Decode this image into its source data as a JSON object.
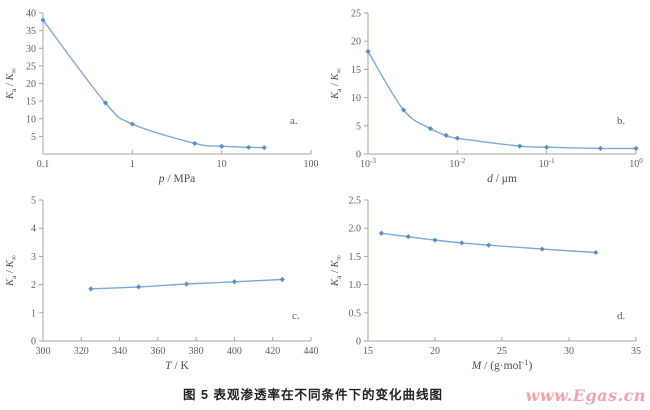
{
  "figure": {
    "caption": "图 5  表观渗透率在不同条件下的变化曲线图",
    "watermark": "www.Egas.cn",
    "colors": {
      "line": "#7ea9d8",
      "marker": "#5b90c6",
      "axis": "#a3a896",
      "tick_label": "#5d6156",
      "axis_label": "#4a4e44",
      "caption": "#222222",
      "watermark": "#f2a3ad",
      "background": "#ffffff"
    }
  },
  "chart_data": [
    {
      "id": "a",
      "type": "line",
      "tag": "a.",
      "tag_pos": [
        290,
        124
      ],
      "title": "",
      "xlabel": "p / MPa",
      "ylabel": "Ka / K∞",
      "xlabel_tokens": [
        {
          "t": "p",
          "i": 1
        },
        {
          "t": " / MPa"
        }
      ],
      "ylabel_tokens": [
        {
          "t": "K",
          "i": 1
        },
        {
          "t": "a",
          "sub": 1
        },
        {
          "t": " / "
        },
        {
          "t": "K",
          "i": 1
        },
        {
          "t": "∞",
          "sub": 1
        }
      ],
      "x_scale": "log",
      "x_min": 0.1,
      "x_max": 100,
      "y_min": 0,
      "y_max": 40,
      "grid": false,
      "legend": "none",
      "x": [
        0.1,
        0.5,
        1,
        5,
        10,
        20,
        30
      ],
      "y": [
        38,
        14.5,
        8.5,
        3,
        2.2,
        1.9,
        1.8
      ],
      "x_ticks": [
        {
          "v": 0.1,
          "l": "0.1"
        },
        {
          "v": 1,
          "l": "1"
        },
        {
          "v": 10,
          "l": "10"
        },
        {
          "v": 100,
          "l": "100"
        }
      ],
      "y_ticks": [
        {
          "v": 5,
          "l": "5"
        },
        {
          "v": 10,
          "l": "10"
        },
        {
          "v": 15,
          "l": "15"
        },
        {
          "v": 20,
          "l": "20"
        },
        {
          "v": 25,
          "l": "25"
        },
        {
          "v": 30,
          "l": "30"
        },
        {
          "v": 35,
          "l": "35"
        },
        {
          "v": 40,
          "l": "40"
        }
      ]
    },
    {
      "id": "b",
      "type": "line",
      "tag": "b.",
      "tag_pos": [
        292,
        124
      ],
      "title": "",
      "xlabel": "d / μm",
      "ylabel": "Ka / K∞",
      "xlabel_tokens": [
        {
          "t": "d",
          "i": 1
        },
        {
          "t": " / μm"
        }
      ],
      "ylabel_tokens": [
        {
          "t": "K",
          "i": 1
        },
        {
          "t": "a",
          "sub": 1
        },
        {
          "t": " / "
        },
        {
          "t": "K",
          "i": 1
        },
        {
          "t": "∞",
          "sub": 1
        }
      ],
      "x_scale": "log",
      "x_min": 0.001,
      "x_max": 1,
      "y_min": 0,
      "y_max": 25,
      "grid": false,
      "legend": "none",
      "x": [
        0.001,
        0.0025,
        0.005,
        0.0075,
        0.01,
        0.05,
        0.1,
        0.4,
        1
      ],
      "y": [
        18.2,
        7.8,
        4.5,
        3.3,
        2.8,
        1.4,
        1.2,
        1.0,
        1.0
      ],
      "x_ticks": [
        {
          "v": 0.001,
          "e": "-3"
        },
        {
          "v": 0.01,
          "e": "-2"
        },
        {
          "v": 0.1,
          "e": "-1"
        },
        {
          "v": 1,
          "e": "0"
        }
      ],
      "y_ticks": [
        {
          "v": 0,
          "l": "0"
        },
        {
          "v": 5,
          "l": "5"
        },
        {
          "v": 10,
          "l": "10"
        },
        {
          "v": 15,
          "l": "15"
        },
        {
          "v": 20,
          "l": "20"
        },
        {
          "v": 25,
          "l": "25"
        }
      ]
    },
    {
      "id": "c",
      "type": "line",
      "tag": "c.",
      "tag_pos": [
        292,
        132
      ],
      "title": "",
      "xlabel": "T / K",
      "ylabel": "Ka / K∞",
      "xlabel_tokens": [
        {
          "t": "T",
          "i": 1
        },
        {
          "t": " / K"
        }
      ],
      "ylabel_tokens": [
        {
          "t": "K",
          "i": 1
        },
        {
          "t": "a",
          "sub": 1
        },
        {
          "t": " / "
        },
        {
          "t": "K",
          "i": 1
        },
        {
          "t": "∞",
          "sub": 1
        }
      ],
      "x_scale": "linear",
      "x_min": 300,
      "x_max": 440,
      "y_min": 0,
      "y_max": 5,
      "grid": false,
      "legend": "none",
      "x": [
        325,
        350,
        375,
        400,
        425
      ],
      "y": [
        1.85,
        1.92,
        2.02,
        2.1,
        2.18
      ],
      "x_ticks": [
        {
          "v": 300,
          "l": "300"
        },
        {
          "v": 320,
          "l": "320"
        },
        {
          "v": 340,
          "l": "340"
        },
        {
          "v": 360,
          "l": "360"
        },
        {
          "v": 380,
          "l": "380"
        },
        {
          "v": 400,
          "l": "400"
        },
        {
          "v": 420,
          "l": "420"
        },
        {
          "v": 440,
          "l": "440"
        }
      ],
      "y_ticks": [
        {
          "v": 0,
          "l": "0"
        },
        {
          "v": 1,
          "l": "1"
        },
        {
          "v": 2,
          "l": "2"
        },
        {
          "v": 3,
          "l": "3"
        },
        {
          "v": 4,
          "l": "4"
        },
        {
          "v": 5,
          "l": "5"
        }
      ]
    },
    {
      "id": "d",
      "type": "line",
      "tag": "d.",
      "tag_pos": [
        292,
        132
      ],
      "title": "",
      "xlabel": "M / (g·mol-1)",
      "ylabel": "Ka / K∞",
      "xlabel_tokens": [
        {
          "t": "M",
          "i": 1
        },
        {
          "t": " / (g·mol"
        },
        {
          "t": "-1",
          "sup": 1
        },
        {
          "t": ")"
        }
      ],
      "ylabel_tokens": [
        {
          "t": "K",
          "i": 1
        },
        {
          "t": "a",
          "sub": 1
        },
        {
          "t": " / "
        },
        {
          "t": "K",
          "i": 1
        },
        {
          "t": "∞",
          "sub": 1
        }
      ],
      "x_scale": "linear",
      "x_min": 15,
      "x_max": 35,
      "y_min": 0,
      "y_max": 2.5,
      "grid": false,
      "legend": "none",
      "x": [
        16,
        18,
        20,
        22,
        24,
        28,
        32
      ],
      "y": [
        1.91,
        1.85,
        1.79,
        1.74,
        1.7,
        1.63,
        1.57
      ],
      "x_ticks": [
        {
          "v": 15,
          "l": "15"
        },
        {
          "v": 20,
          "l": "20"
        },
        {
          "v": 25,
          "l": "25"
        },
        {
          "v": 30,
          "l": "30"
        },
        {
          "v": 35,
          "l": "35"
        }
      ],
      "y_ticks": [
        {
          "v": 0,
          "l": "0"
        },
        {
          "v": 0.5,
          "l": "0.5"
        },
        {
          "v": 1,
          "l": "1.0"
        },
        {
          "v": 1.5,
          "l": "1.5"
        },
        {
          "v": 2,
          "l": "2.0"
        },
        {
          "v": 2.5,
          "l": "2.5"
        }
      ]
    }
  ]
}
